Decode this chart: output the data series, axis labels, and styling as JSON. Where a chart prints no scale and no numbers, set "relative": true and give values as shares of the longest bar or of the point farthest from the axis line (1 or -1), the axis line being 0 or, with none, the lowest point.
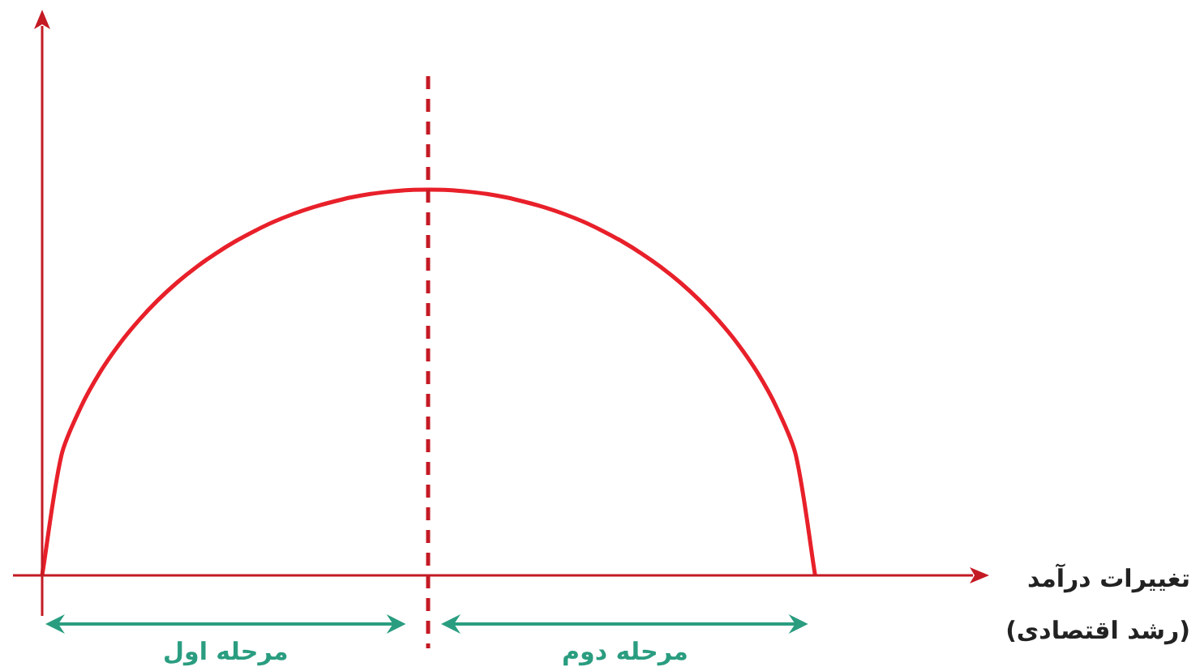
{
  "chart_data": {
    "type": "line",
    "relative": true,
    "xlabel": "تغییرات درآمد\n(رشد اقتصادی)",
    "categories": [
      null,
      null,
      null,
      null,
      null,
      null,
      null,
      null,
      null,
      null,
      null,
      null,
      null,
      null,
      null,
      null,
      null,
      null,
      null,
      null,
      null,
      null,
      null,
      null,
      null,
      null,
      null,
      null,
      null,
      null,
      null,
      null,
      null,
      null,
      null,
      null,
      null,
      null,
      null,
      null,
      null,
      null,
      null,
      null,
      null,
      null,
      null,
      null,
      null
    ],
    "series": [
      {
        "color": "#e8202a",
        "values": [
          0,
          0.312,
          0.436,
          0.527,
          0.6,
          0.661,
          0.714,
          0.76,
          0.8,
          0.835,
          0.866,
          0.893,
          0.917,
          0.937,
          0.954,
          0.968,
          0.98,
          0.989,
          0.995,
          0.999,
          1,
          0.999,
          0.995,
          0.989,
          0.98,
          0.968,
          0.954,
          0.937,
          0.917,
          0.893,
          0.866,
          0.835,
          0.8,
          0.76,
          0.714,
          0.661,
          0.6,
          0.527,
          0.436,
          0.312,
          0,
          null,
          null,
          null,
          null,
          null,
          null,
          null,
          null
        ]
      }
    ],
    "annotations": [
      "مرحله اول",
      "مرحله دوم"
    ],
    "marker": "none",
    "line_style": "solid",
    "legend": false
  }
}
